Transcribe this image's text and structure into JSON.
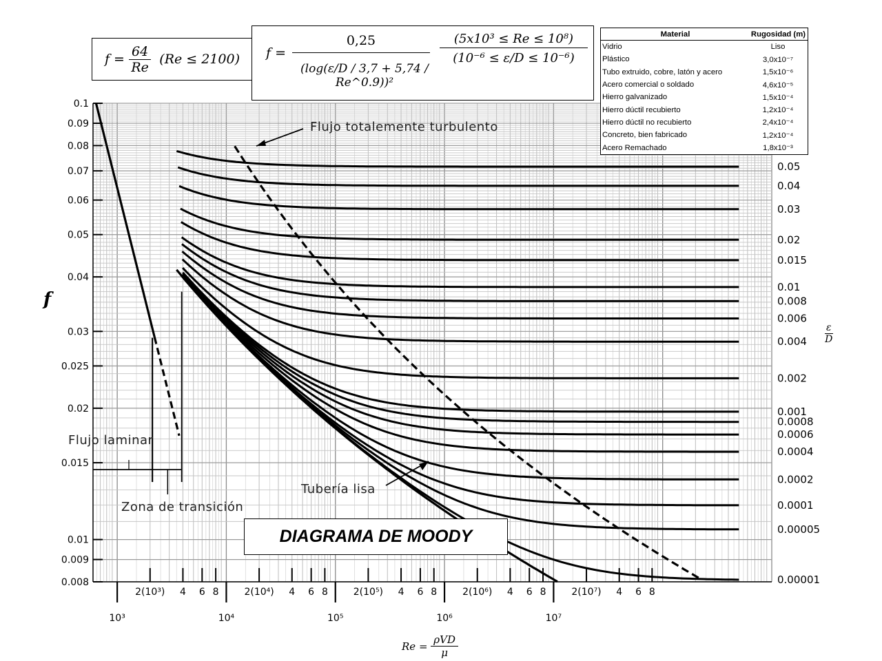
{
  "formulas": {
    "laminar": {
      "lhs": "f =",
      "num": "64",
      "den": "Re",
      "cond": "(Re ≤ 2100)"
    },
    "turbulent": {
      "lhs": "f =",
      "num": "0,25",
      "den": "(log(ε/D / 3,7 + 5,74 / Re^0.9))²",
      "cond1": "(5x10³ ≤ Re ≤ 10⁸)",
      "cond2": "(10⁻⁶ ≤ ε/D ≤ 10⁻⁶)"
    }
  },
  "table": {
    "headers": [
      "Material",
      "Rugosidad (m)"
    ],
    "rows": [
      [
        "Vidrio",
        "Liso"
      ],
      [
        "Plástico",
        "3,0x10⁻⁷"
      ],
      [
        "Tubo extruido, cobre, latón y acero",
        "1,5x10⁻⁶"
      ],
      [
        "Acero comercial o soldado",
        "4,6x10⁻⁵"
      ],
      [
        "Hierro galvanizado",
        "1,5x10⁻⁴"
      ],
      [
        "Hierro dúctil recubierto",
        "1,2x10⁻⁴"
      ],
      [
        "Hierro dúctil no recubierto",
        "2,4x10⁻⁴"
      ],
      [
        "Concreto, bien fabricado",
        "1,2x10⁻⁴"
      ],
      [
        "Acero Remachado",
        "1,8x10⁻³"
      ]
    ]
  },
  "labels": {
    "title": "DIAGRAMA DE MOODY",
    "ylabel": "f",
    "ed_num": "ε",
    "ed_den": "D",
    "x_re": "Re =",
    "x_num": "ρVD",
    "x_den": "μ",
    "fully_turbulent": "Flujo totalemente turbulento",
    "laminar": "Flujo laminar",
    "transition": "Zona de transición",
    "smooth": "Tubería lisa"
  },
  "chart_data": {
    "type": "line",
    "title": "DIAGRAMA DE MOODY",
    "xlabel": "Re = ρVD/μ",
    "ylabel": "f",
    "xscale": "log",
    "yscale": "log",
    "xlim": [
      600,
      1000000000
    ],
    "ylim": [
      0.008,
      0.1
    ],
    "grid": true,
    "y_ticks": [
      {
        "v": 0.1,
        "label": "0.1"
      },
      {
        "v": 0.09,
        "label": "0.09"
      },
      {
        "v": 0.08,
        "label": "0.08"
      },
      {
        "v": 0.07,
        "label": "0.07"
      },
      {
        "v": 0.06,
        "label": "0.06"
      },
      {
        "v": 0.05,
        "label": "0.05"
      },
      {
        "v": 0.04,
        "label": "0.04"
      },
      {
        "v": 0.03,
        "label": "0.03"
      },
      {
        "v": 0.025,
        "label": "0.025"
      },
      {
        "v": 0.02,
        "label": "0.02"
      },
      {
        "v": 0.015,
        "label": "0.015"
      },
      {
        "v": 0.01,
        "label": "0.01"
      },
      {
        "v": 0.009,
        "label": "0.009"
      },
      {
        "v": 0.008,
        "label": "0.008"
      }
    ],
    "x_major_ticks": [
      {
        "v": 1000,
        "label": "10³"
      },
      {
        "v": 10000,
        "label": "10⁴"
      },
      {
        "v": 100000,
        "label": "10⁵"
      },
      {
        "v": 1000000,
        "label": "10⁶"
      },
      {
        "v": 10000000,
        "label": "10⁷"
      }
    ],
    "x_minor_ticks": [
      {
        "v": 2000,
        "label": "2(10³)"
      },
      {
        "v": 4000,
        "label": "4"
      },
      {
        "v": 6000,
        "label": "6"
      },
      {
        "v": 8000,
        "label": "8"
      },
      {
        "v": 20000,
        "label": "2(10⁴)"
      },
      {
        "v": 40000,
        "label": "4"
      },
      {
        "v": 60000,
        "label": "6"
      },
      {
        "v": 80000,
        "label": "8"
      },
      {
        "v": 200000,
        "label": "2(10⁵)"
      },
      {
        "v": 400000,
        "label": "4"
      },
      {
        "v": 600000,
        "label": "6"
      },
      {
        "v": 800000,
        "label": "8"
      },
      {
        "v": 2000000,
        "label": "2(10⁶)"
      },
      {
        "v": 4000000,
        "label": "4"
      },
      {
        "v": 6000000,
        "label": "6"
      },
      {
        "v": 8000000,
        "label": "8"
      },
      {
        "v": 20000000,
        "label": "2(10⁷)"
      },
      {
        "v": 40000000,
        "label": "4"
      },
      {
        "v": 60000000,
        "label": "6"
      },
      {
        "v": 80000000,
        "label": "8"
      }
    ],
    "roughness_curves": [
      {
        "ed": 0.05,
        "label": "0.05"
      },
      {
        "ed": 0.04,
        "label": "0.04"
      },
      {
        "ed": 0.03,
        "label": "0.03"
      },
      {
        "ed": 0.02,
        "label": "0.02"
      },
      {
        "ed": 0.015,
        "label": "0.015"
      },
      {
        "ed": 0.01,
        "label": "0.01"
      },
      {
        "ed": 0.008,
        "label": "0.008"
      },
      {
        "ed": 0.006,
        "label": "0.006"
      },
      {
        "ed": 0.004,
        "label": "0.004"
      },
      {
        "ed": 0.002,
        "label": "0.002"
      },
      {
        "ed": 0.001,
        "label": "0.001"
      },
      {
        "ed": 0.0008,
        "label": "0.0008"
      },
      {
        "ed": 0.0006,
        "label": "0.0006"
      },
      {
        "ed": 0.0004,
        "label": "0.0004"
      },
      {
        "ed": 0.0002,
        "label": "0.0002"
      },
      {
        "ed": 0.0001,
        "label": "0.0001"
      },
      {
        "ed": 5e-05,
        "label": "0.00005"
      },
      {
        "ed": 1e-05,
        "label": "0.00001"
      }
    ],
    "turbulent_re_range": [
      3500,
      1000000000
    ],
    "laminar": {
      "formula": "64/Re",
      "re_range": [
        640,
        3700
      ]
    }
  }
}
